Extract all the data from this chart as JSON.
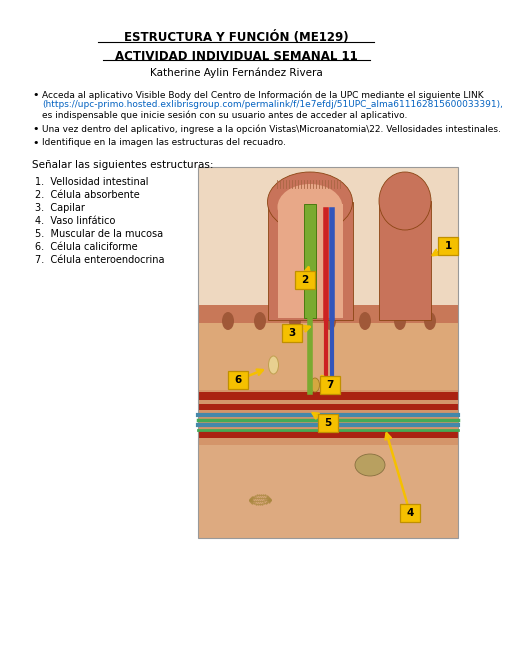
{
  "title1": "ESTRUCTURA Y FUNCIÓN (ME129)",
  "title2": "ACTIVIDAD INDIVIDUAL SEMANAL 11",
  "author": "Katherine Aylin Fernández Rivera",
  "section_label": "Señalar las siguientes estructuras:",
  "structures": [
    "Vellosidad intestinal",
    "Célula absorbente",
    "Capilar",
    "Vaso linfático",
    "Muscular de la mucosa",
    "Célula caliciforme",
    "Célula enteroendocrina"
  ],
  "bullet1_part1": "Acceda al aplicativo Visible Body del Centro de Información de la UPC mediante el siguiente LINK",
  "bullet1_link": "(https://upc-primo.hosted.exlibrisgroup.com/permalink/f/1e7efdj/51UPC_alma611162815600033391),",
  "bullet1_part2": "es indispensable que inicie sesión con su usuario antes de acceder al aplicativo.",
  "bullet2": "Una vez dentro del aplicativo, ingrese a la opción Vistas\\Microanatomia\\22. Vellosidades intestinales.",
  "bullet3": "Identifique en la imagen las estructuras del recuadro.",
  "bg_color": "#ffffff",
  "text_color": "#000000",
  "link_color": "#0563C1",
  "label_bg": "#F5C000",
  "label_border": "#C09000",
  "outer_villus_color": "#C8735A",
  "inner_villus_color": "#E8A888",
  "tissue_color": "#D4956A",
  "submucosa_color": "#DDAA80",
  "lacteal_color": "#7AAA30",
  "red_cap_color": "#CC2222",
  "blue_cap_color": "#3355BB",
  "muscle_color": "#AA2211",
  "subm_line1": "#4488AA",
  "subm_line2": "#44AA55"
}
